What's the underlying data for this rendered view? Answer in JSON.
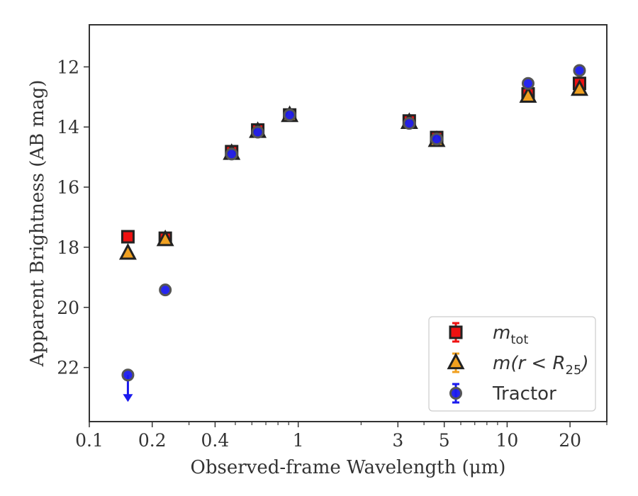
{
  "chart_data": {
    "type": "scatter",
    "xlabel": "Observed-frame Wavelength (μm)",
    "ylabel": "Apparent Brightness (AB mag)",
    "x_scale": "log",
    "y_inverted": true,
    "xlim": [
      0.1,
      30
    ],
    "ylim": [
      23.8,
      10.6
    ],
    "x_ticks": [
      {
        "value": 0.1,
        "label": "0.1"
      },
      {
        "value": 0.2,
        "label": "0.2"
      },
      {
        "value": 0.4,
        "label": "0.4"
      },
      {
        "value": 1,
        "label": "1"
      },
      {
        "value": 3,
        "label": "3"
      },
      {
        "value": 5,
        "label": "5"
      },
      {
        "value": 10,
        "label": "10"
      },
      {
        "value": 20,
        "label": "20"
      }
    ],
    "x_minor_ticks": [
      0.3,
      0.5,
      0.6,
      0.7,
      0.8,
      0.9,
      2,
      4,
      6,
      7,
      8,
      9,
      30
    ],
    "y_ticks": [
      {
        "value": 12,
        "label": "12"
      },
      {
        "value": 14,
        "label": "14"
      },
      {
        "value": 16,
        "label": "16"
      },
      {
        "value": 18,
        "label": "18"
      },
      {
        "value": 20,
        "label": "20"
      },
      {
        "value": 22,
        "label": "22"
      }
    ],
    "grid": false,
    "legend_position": "bottom-right",
    "series": [
      {
        "name": "m_tot",
        "legend_main": "m",
        "legend_sub": "tot",
        "marker": "square",
        "color": "#ee1111",
        "edge_color": "#222222",
        "points": [
          {
            "x": 0.153,
            "y": 17.65
          },
          {
            "x": 0.231,
            "y": 17.7
          },
          {
            "x": 0.48,
            "y": 14.82
          },
          {
            "x": 0.64,
            "y": 14.1
          },
          {
            "x": 0.91,
            "y": 13.6
          },
          {
            "x": 3.4,
            "y": 13.8
          },
          {
            "x": 4.6,
            "y": 14.35
          },
          {
            "x": 12.6,
            "y": 12.9
          },
          {
            "x": 22.2,
            "y": 12.55
          }
        ]
      },
      {
        "name": "m(r<R25)",
        "legend_main": "m(r < R",
        "legend_sub": "25",
        "legend_tail": ")",
        "marker": "triangle",
        "color": "#f0a020",
        "edge_color": "#222222",
        "points": [
          {
            "x": 0.153,
            "y": 18.2
          },
          {
            "x": 0.231,
            "y": 17.75
          },
          {
            "x": 0.48,
            "y": 14.88
          },
          {
            "x": 0.64,
            "y": 14.15
          },
          {
            "x": 0.91,
            "y": 13.62
          },
          {
            "x": 3.4,
            "y": 13.85
          },
          {
            "x": 4.6,
            "y": 14.45
          },
          {
            "x": 12.6,
            "y": 12.98
          },
          {
            "x": 22.2,
            "y": 12.75
          }
        ]
      },
      {
        "name": "Tractor",
        "legend_main": "Tractor",
        "marker": "circle",
        "color": "#1a1aee",
        "edge_color": "#555555",
        "points": [
          {
            "x": 0.153,
            "y": 22.25,
            "upper_limit": true,
            "limit_to": 23.1
          },
          {
            "x": 0.231,
            "y": 19.42
          },
          {
            "x": 0.48,
            "y": 14.9
          },
          {
            "x": 0.64,
            "y": 14.17
          },
          {
            "x": 0.91,
            "y": 13.6
          },
          {
            "x": 3.4,
            "y": 13.88
          },
          {
            "x": 4.6,
            "y": 14.4
          },
          {
            "x": 12.6,
            "y": 12.55
          },
          {
            "x": 22.2,
            "y": 12.12
          }
        ]
      }
    ]
  }
}
